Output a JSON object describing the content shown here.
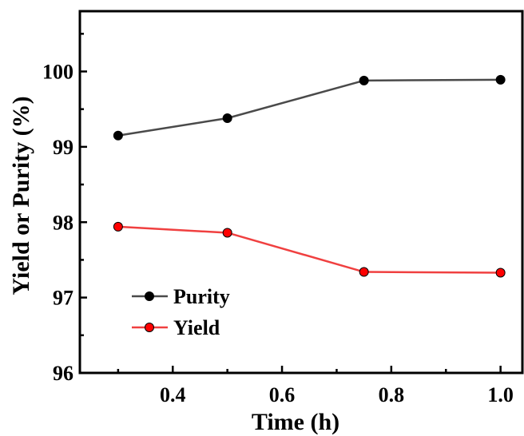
{
  "chart_data": {
    "type": "line",
    "title": "",
    "xlabel": "Time (h)",
    "ylabel": "Yield or Purity (%)",
    "xlim": [
      0.23,
      1.04
    ],
    "ylim": [
      96,
      100.8
    ],
    "xticks": [
      0.4,
      0.6,
      0.8,
      1.0
    ],
    "xtick_labels": [
      "0.4",
      "0.6",
      "0.8",
      "1.0"
    ],
    "yticks": [
      96,
      97,
      98,
      99,
      100
    ],
    "ytick_labels": [
      "96",
      "97",
      "98",
      "99",
      "100"
    ],
    "grid": false,
    "legend_position": "bottom-left",
    "x": [
      0.3,
      0.5,
      0.75,
      1.0
    ],
    "series": [
      {
        "name": "Purity",
        "values": [
          99.15,
          99.38,
          99.88,
          99.89
        ],
        "line_color": "#4a4a4a",
        "marker_color": "#000000"
      },
      {
        "name": "Yield",
        "values": [
          97.94,
          97.86,
          97.34,
          97.33
        ],
        "line_color": "#f04040",
        "marker_color": "#ff0000"
      }
    ]
  }
}
